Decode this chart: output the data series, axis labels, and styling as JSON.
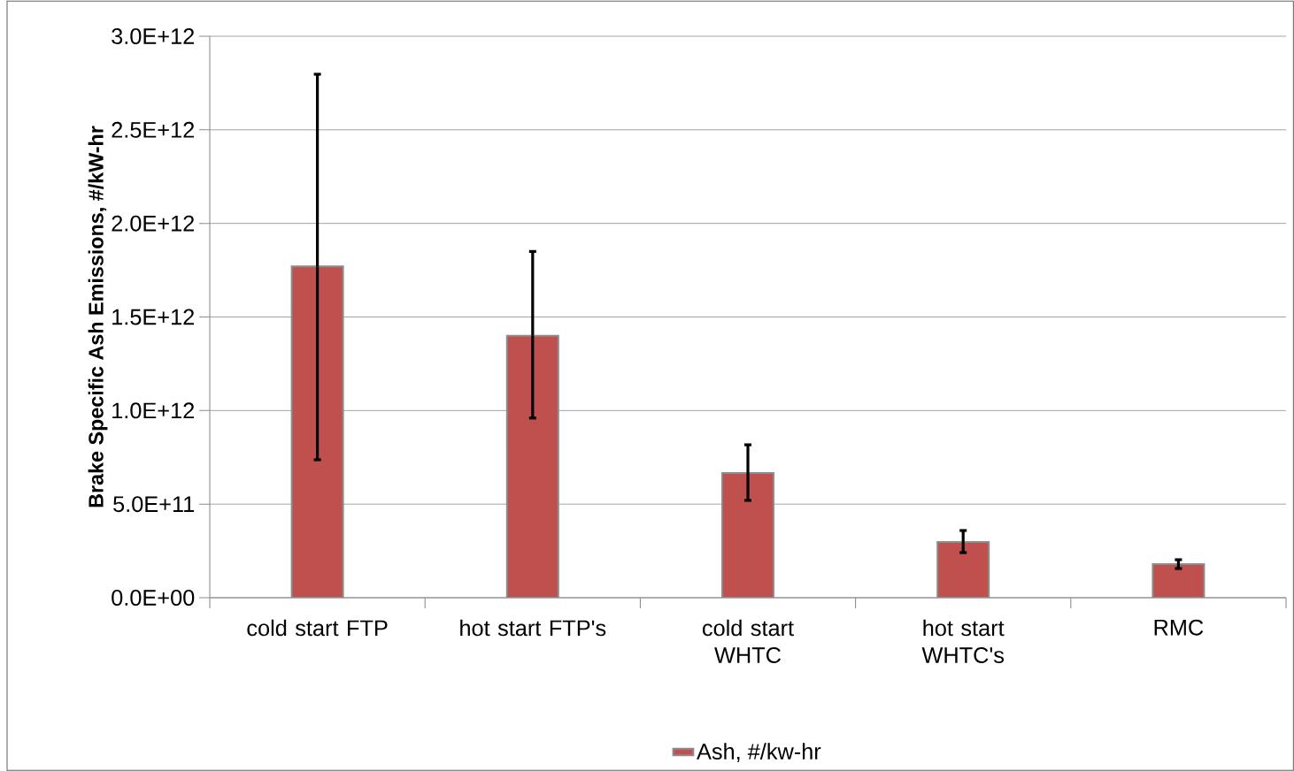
{
  "chart_data": {
    "type": "bar",
    "ylabel": "Brake Specific Ash Emissions, #/kW-hr",
    "categories": [
      "cold start FTP",
      "hot start FTP's",
      "cold start WHTC",
      "hot start WHTC's",
      "RMC"
    ],
    "series": [
      {
        "name": "Ash, #/kw-hr",
        "color": "#c0504d",
        "values": [
          1770000000000.0,
          1400000000000.0,
          666000000000.0,
          298000000000.0,
          180000000000.0
        ],
        "errors": [
          [
            737000000000.0,
            2797000000000.0
          ],
          [
            960000000000.0,
            1850000000000.0
          ],
          [
            520000000000.0,
            817000000000.0
          ],
          [
            241000000000.0,
            359000000000.0
          ],
          [
            156000000000.0,
            203000000000.0
          ]
        ]
      }
    ],
    "ylim": [
      0,
      3000000000000.0
    ],
    "yticks": [
      {
        "value": 0,
        "label": "0.0E+00"
      },
      {
        "value": 500000000000.0,
        "label": "5.0E+11"
      },
      {
        "value": 1000000000000.0,
        "label": "1.0E+12"
      },
      {
        "value": 1500000000000.0,
        "label": "1.5E+12"
      },
      {
        "value": 2000000000000.0,
        "label": "2.0E+12"
      },
      {
        "value": 2500000000000.0,
        "label": "2.5E+12"
      },
      {
        "value": 3000000000000.0,
        "label": "3.0E+12"
      }
    ],
    "grid": "y",
    "legend": "bottom"
  }
}
